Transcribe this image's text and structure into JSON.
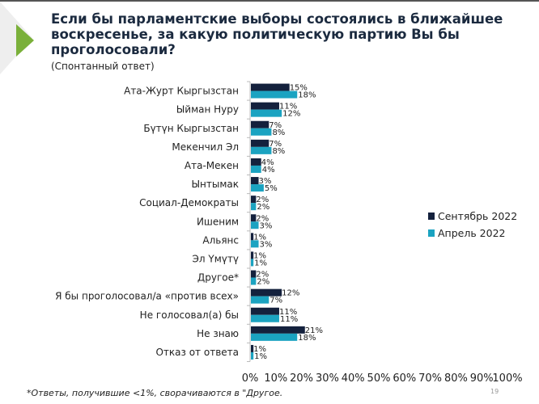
{
  "title": "Если бы парламентские выборы состоялись в ближайшее воскресенье, за какую политическую партию Вы бы проголосовали?",
  "subtitle": "(Спонтанный ответ)",
  "footnote": "*Ответы, получившие <1%, сворачиваются в \"Другое.",
  "page_number": "19",
  "colors": {
    "sep2022": "#14213d",
    "apr2022": "#1ba3c1",
    "accent": "#7ab03a"
  },
  "chart_data": {
    "type": "bar",
    "orientation": "horizontal",
    "categories": [
      "Ата-Журт Кыргызстан",
      "Ыйман Нуру",
      "Бүтүн Кыргызстан",
      "Мекенчил Эл",
      "Ата-Мекен",
      "Ынтымак",
      "Социал-Демократы",
      "Ишеним",
      "Альянс",
      "Эл Үмүтү",
      "Другое*",
      "Я бы проголосовал/а «против всех»",
      "Не голосовал(а) бы",
      "Не знаю",
      "Отказ от ответа"
    ],
    "series": [
      {
        "name": "Сентябрь 2022",
        "values": [
          15,
          11,
          7,
          7,
          4,
          3,
          2,
          2,
          1,
          1,
          2,
          12,
          11,
          21,
          1
        ]
      },
      {
        "name": "Апрель 2022",
        "values": [
          18,
          12,
          8,
          8,
          4,
          5,
          2,
          3,
          3,
          1,
          2,
          7,
          11,
          18,
          1
        ]
      }
    ],
    "xlim": [
      0,
      100
    ],
    "xticks": [
      "0%",
      "10%",
      "20%",
      "30%",
      "40%",
      "50%",
      "60%",
      "70%",
      "80%",
      "90%",
      "100%"
    ],
    "legend_position": "right",
    "grid": false
  }
}
